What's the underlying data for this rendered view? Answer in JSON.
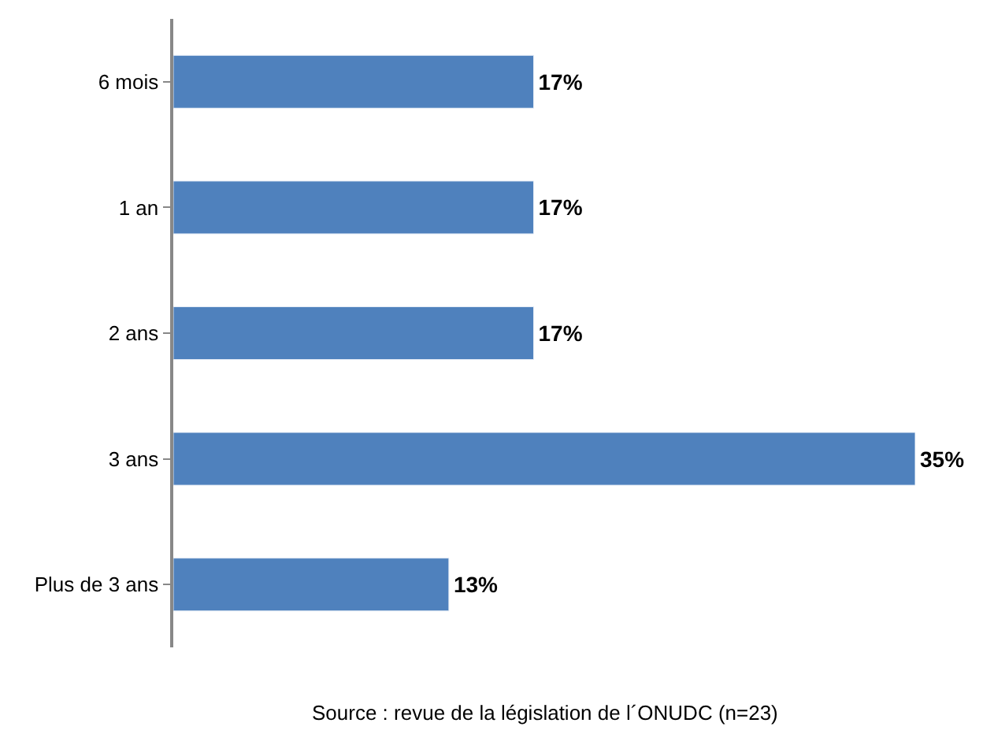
{
  "chart_data": {
    "type": "bar",
    "orientation": "horizontal",
    "categories": [
      "6 mois",
      "1 an",
      "2 ans",
      "3 ans",
      "Plus de 3 ans"
    ],
    "values": [
      17,
      17,
      17,
      35,
      13
    ],
    "value_labels": [
      "17%",
      "17%",
      "17%",
      "35%",
      "13%"
    ],
    "color": "#4f81bd",
    "annotations": [
      "Source : revue de la législation de l´ONUDC (n=23)"
    ]
  }
}
